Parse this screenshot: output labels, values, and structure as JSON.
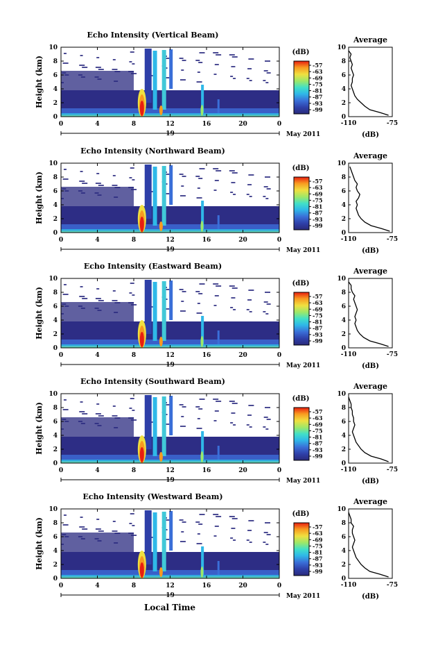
{
  "footer": {
    "xlabel": "Local Time"
  },
  "shared": {
    "ylabel": "Height (km)",
    "x_ticks": [
      "0",
      "4",
      "8",
      "12",
      "16",
      "20",
      "0"
    ],
    "y_ticks": [
      "0",
      "2",
      "4",
      "6",
      "8",
      "10"
    ],
    "date_label": "19",
    "month_label": "May 2011",
    "colorbar_unit": "(dB)",
    "colorbar_ticks": [
      "-57",
      "-63",
      "-69",
      "-75",
      "-81",
      "-87",
      "-93",
      "-99"
    ],
    "avg_title": "Average",
    "avg_xticks": [
      "-110",
      "-75"
    ],
    "avg_ylabel_ticks": [
      "0",
      "2",
      "4",
      "6",
      "8",
      "10"
    ],
    "avg_xlabel": "(dB)"
  },
  "chart_data": [
    {
      "type": "heatmap",
      "title": "Echo Intensity (Vertical Beam)",
      "xlabel": "",
      "ylabel": "Height (km)",
      "xlim": [
        0,
        24
      ],
      "ylim": [
        0,
        10
      ],
      "colorbar": {
        "label": "(dB)",
        "range": [
          -99,
          -57
        ]
      },
      "profile": {
        "title": "Average",
        "xlabel": "(dB)",
        "xlim": [
          -110,
          -75
        ],
        "heights": [
          0.2,
          0.6,
          1.0,
          1.5,
          2.0,
          2.5,
          3.0,
          3.5,
          4.0,
          4.5,
          5.0,
          5.5,
          6.0,
          6.5,
          7.0,
          7.5,
          8.0,
          8.5,
          9.0,
          9.5
        ],
        "values": [
          -78,
          -85,
          -93,
          -97,
          -100,
          -103,
          -105,
          -106,
          -107,
          -108,
          -107,
          -107,
          -106,
          -107,
          -108,
          -107,
          -108,
          -109,
          -108,
          -110
        ]
      }
    },
    {
      "type": "heatmap",
      "title": "Echo Intensity (Northward Beam)",
      "xlabel": "",
      "ylabel": "Height (km)",
      "xlim": [
        0,
        24
      ],
      "ylim": [
        0,
        10
      ],
      "colorbar": {
        "label": "(dB)",
        "range": [
          -99,
          -57
        ]
      },
      "profile": {
        "title": "Average",
        "xlabel": "(dB)",
        "xlim": [
          -110,
          -75
        ],
        "heights": [
          0.2,
          0.6,
          1.0,
          1.5,
          2.0,
          2.5,
          3.0,
          3.5,
          4.0,
          4.5,
          5.0,
          5.5,
          6.0,
          6.5,
          7.0,
          7.5,
          8.0,
          8.5,
          9.0,
          9.5
        ],
        "values": [
          -77,
          -84,
          -92,
          -97,
          -100,
          -102,
          -103,
          -104,
          -103,
          -104,
          -102,
          -101,
          -103,
          -104,
          -103,
          -105,
          -106,
          -107,
          -108,
          -109
        ]
      }
    },
    {
      "type": "heatmap",
      "title": "Echo Intensity (Eastward Beam)",
      "xlabel": "",
      "ylabel": "Height (km)",
      "xlim": [
        0,
        24
      ],
      "ylim": [
        0,
        10
      ],
      "colorbar": {
        "label": "(dB)",
        "range": [
          -99,
          -57
        ]
      },
      "profile": {
        "title": "Average",
        "xlabel": "(dB)",
        "xlim": [
          -110,
          -75
        ],
        "heights": [
          0.2,
          0.6,
          1.0,
          1.5,
          2.0,
          2.5,
          3.0,
          3.5,
          4.0,
          4.5,
          5.0,
          5.5,
          6.0,
          6.5,
          7.0,
          7.5,
          8.0,
          8.5,
          9.0,
          9.5
        ],
        "values": [
          -78,
          -85,
          -93,
          -98,
          -101,
          -103,
          -104,
          -105,
          -104,
          -105,
          -104,
          -103,
          -104,
          -105,
          -106,
          -105,
          -107,
          -108,
          -108,
          -110
        ]
      }
    },
    {
      "type": "heatmap",
      "title": "Echo Intensity (Southward Beam)",
      "xlabel": "",
      "ylabel": "Height (km)",
      "xlim": [
        0,
        24
      ],
      "ylim": [
        0,
        10
      ],
      "colorbar": {
        "label": "(dB)",
        "range": [
          -99,
          -57
        ]
      },
      "profile": {
        "title": "Average",
        "xlabel": "(dB)",
        "xlim": [
          -110,
          -75
        ],
        "heights": [
          0.2,
          0.6,
          1.0,
          1.5,
          2.0,
          2.5,
          3.0,
          3.5,
          4.0,
          4.5,
          5.0,
          5.5,
          6.0,
          6.5,
          7.0,
          7.5,
          8.0,
          8.5,
          9.0,
          9.5
        ],
        "values": [
          -78,
          -84,
          -92,
          -97,
          -100,
          -102,
          -104,
          -105,
          -106,
          -107,
          -106,
          -105,
          -106,
          -106,
          -107,
          -107,
          -108,
          -108,
          -109,
          -110
        ]
      }
    },
    {
      "type": "heatmap",
      "title": "Echo Intensity (Westward Beam)",
      "xlabel": "",
      "ylabel": "Height (km)",
      "xlim": [
        0,
        24
      ],
      "ylim": [
        0,
        10
      ],
      "colorbar": {
        "label": "(dB)",
        "range": [
          -99,
          -57
        ]
      },
      "profile": {
        "title": "Average",
        "xlabel": "(dB)",
        "xlim": [
          -110,
          -75
        ],
        "heights": [
          0.2,
          0.6,
          1.0,
          1.5,
          2.0,
          2.5,
          3.0,
          3.5,
          4.0,
          4.5,
          5.0,
          5.5,
          6.0,
          6.5,
          7.0,
          7.5,
          8.0,
          8.5,
          9.0,
          9.5
        ],
        "values": [
          -78,
          -85,
          -93,
          -97,
          -100,
          -102,
          -104,
          -105,
          -106,
          -107,
          -106,
          -105,
          -106,
          -107,
          -107,
          -106,
          -108,
          -108,
          -109,
          -110
        ]
      }
    }
  ]
}
